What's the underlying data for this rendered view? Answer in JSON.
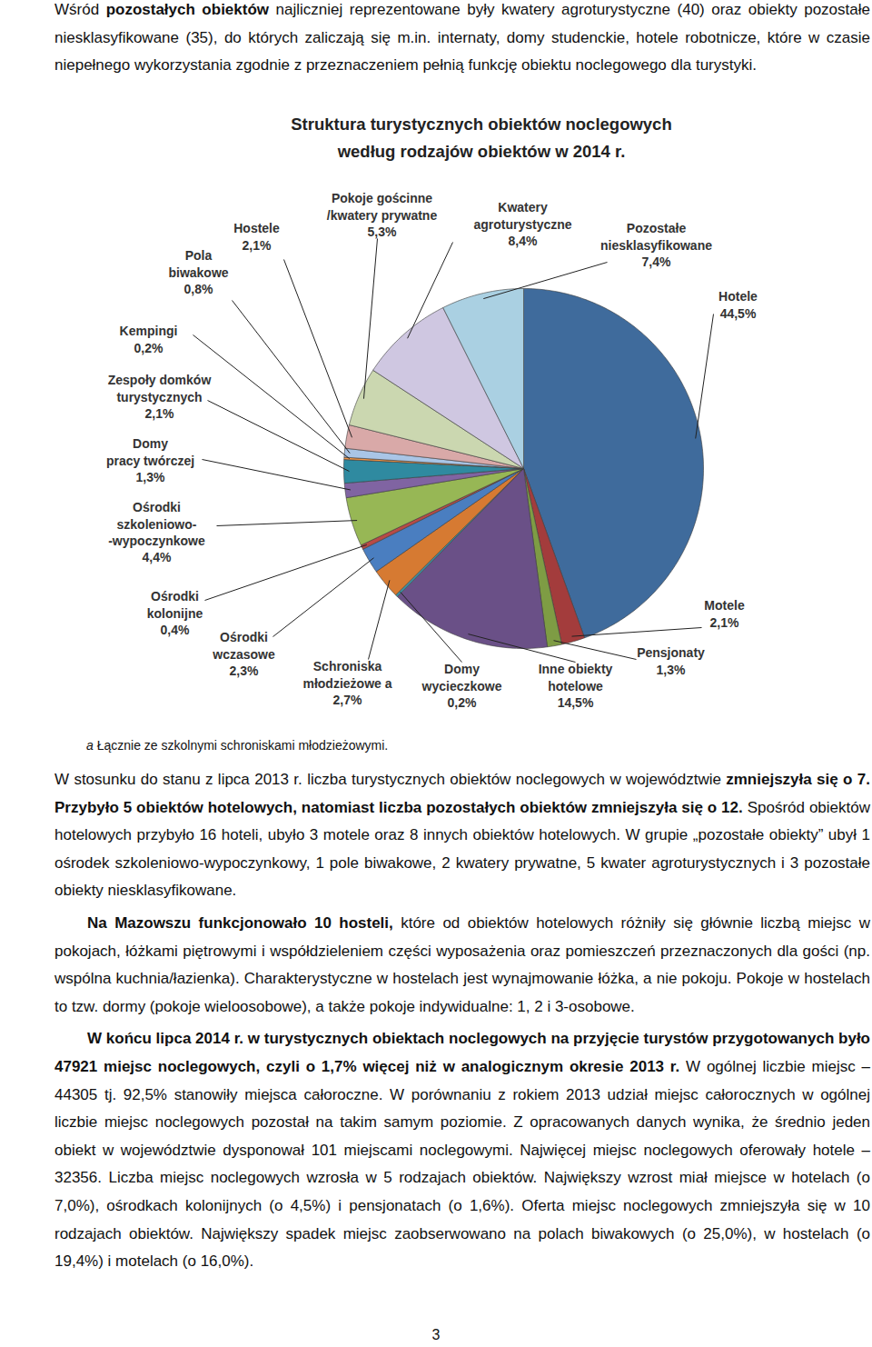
{
  "top_paragraph": [
    {
      "text": "Wśród "
    },
    {
      "text": "pozostałych obiektów",
      "bold": true
    },
    {
      "text": " najliczniej reprezentowane były kwatery agroturystyczne (40) oraz obiekty pozostałe niesklasyfikowane (35), do których zaliczają się m.in. internaty, domy studenckie, hotele robotnicze, które w czasie niepełnego wykorzystania zgodnie z przeznaczeniem pełnią funkcję obiektu noclegowego dla turystyki."
    }
  ],
  "chart_data": {
    "type": "pie",
    "title": "Struktura turystycznych obiektów noclegowych\nwedług rodzajów obiektów w 2014 r.",
    "categories": [
      "Hotele",
      "Motele",
      "Pensjonaty",
      "Inne obiekty\nhotelowe",
      "Domy\nwycieczkowe",
      "Schroniska\nmłodzieżowe a",
      "Ośrodki\nwczasowe",
      "Ośrodki\nkolonijne",
      "Ośrodki\nszkoleniowo-\n-wypoczynkowe",
      "Domy\npracy twórczej",
      "Zespoły domków\nturystycznych",
      "Kempingi",
      "Pola\nbiwakowe",
      "Hostele",
      "Pokoje gościnne\n/kwatery prywatne",
      "Kwatery\nagroturystyczne",
      "Pozostałe\nniesklasyfikowane"
    ],
    "values": [
      44.5,
      2.1,
      1.3,
      14.5,
      0.2,
      2.7,
      2.3,
      0.4,
      4.4,
      1.3,
      2.1,
      0.2,
      0.8,
      2.1,
      5.3,
      8.4,
      7.4
    ],
    "value_labels": [
      "44,5%",
      "2,1%",
      "1,3%",
      "14,5%",
      "0,2%",
      "2,7%",
      "2,3%",
      "0,4%",
      "4,4%",
      "1,3%",
      "2,1%",
      "0,2%",
      "0,8%",
      "2,1%",
      "5,3%",
      "8,4%",
      "7,4%"
    ],
    "colors": [
      "#3f6b9c",
      "#a33c3c",
      "#7e9c44",
      "#6a5087",
      "#3a93a8",
      "#d67a32",
      "#4a7ec0",
      "#b84a46",
      "#97b755",
      "#8064a2",
      "#2f8aa0",
      "#f29545",
      "#a9c5e6",
      "#d9a9a8",
      "#cbd7b0",
      "#cfc7e1",
      "#aad0e2"
    ],
    "data_labels": true
  },
  "footnote": {
    "mark": "a",
    "text": "Łącznie ze szkolnymi schroniskami młodzieżowymi."
  },
  "paragraphs": [
    [
      {
        "text": "W stosunku do stanu z lipca 2013 r. liczba turystycznych obiektów noclegowych w województwie "
      },
      {
        "text": "zmniejszyła się o 7. Przybyło 5 obiektów hotelowych, natomiast liczba pozostałych obiektów zmniejszyła się o 12.",
        "bold": true
      },
      {
        "text": " Spośród obiektów hotelowych przybyło 16 hoteli, ubyło 3 motele oraz 8 innych obiektów hotelowych. W grupie „pozostałe obiekty” ubył 1 ośrodek szkoleniowo-wypoczynkowy, 1 pole biwakowe, 2 kwatery prywatne, 5 kwater agroturystycznych i 3 pozostałe obiekty niesklasyfikowane."
      }
    ],
    [
      {
        "text": "Na Mazowszu funkcjonowało 10 hosteli,",
        "bold": true
      },
      {
        "text": " które od obiektów hotelowych różniły się głównie liczbą miejsc w pokojach, łóżkami piętrowymi i współdzieleniem części wyposażenia oraz pomieszczeń przeznaczonych dla gości (np. wspólna kuchnia/łazienka). Charakterystyczne w hostelach jest wynajmowanie łóżka, a nie pokoju. Pokoje w hostelach to tzw. dormy (pokoje wieloosobowe), a także pokoje indywidualne: 1, 2 i 3-osobowe."
      }
    ],
    [
      {
        "text": "W końcu lipca 2014 r. w turystycznych obiektach noclegowych na przyjęcie turystów przygotowanych było 47921 miejsc noclegowych, czyli o 1,7% więcej niż w analogicznym okresie 2013 r.",
        "bold": true
      },
      {
        "text": " W ogólnej liczbie miejsc – 44305 tj. 92,5% stanowiły miejsca całoroczne. W porównaniu z rokiem 2013 udział miejsc całorocznych w ogólnej liczbie miejsc noclegowych pozostał na takim samym poziomie. Z opracowanych danych wynika, że średnio jeden obiekt w województwie dysponował 101 miejscami noclegowymi. Najwięcej miejsc noclegowych oferowały hotele – 32356. Liczba miejsc noclegowych wzrosła w 5 rodzajach obiektów. Największy wzrost miał miejsce w hotelach (o 7,0%), ośrodkach kolonijnych (o 4,5%) i pensjonatach (o 1,6%). Oferta miejsc noclegowych zmniejszyła się w 10 rodzajach obiektów. Największy spadek miejsc zaobserwowano na polach biwakowych (o 25,0%), w hostelach (o 19,4%) i motelach (o 16,0%)."
      }
    ]
  ],
  "page_number": 3
}
